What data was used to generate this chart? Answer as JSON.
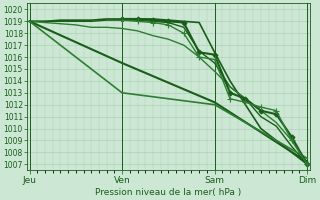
{
  "xlabel": "Pression niveau de la mer( hPa )",
  "ylim": [
    1006.5,
    1020.5
  ],
  "yticks": [
    1007,
    1008,
    1009,
    1010,
    1011,
    1012,
    1013,
    1014,
    1015,
    1016,
    1017,
    1018,
    1019,
    1020
  ],
  "xtick_labels": [
    "Jeu",
    "Ven",
    "Sam",
    "Dim"
  ],
  "xtick_positions": [
    0,
    36,
    72,
    108
  ],
  "xlim": [
    -1,
    109
  ],
  "bg_color": "#cce8d4",
  "grid_color": "#a8ccb0",
  "line_color_dark": "#1a5c1a",
  "line_color_med": "#2e7d32",
  "lines": [
    {
      "x": [
        0,
        6,
        12,
        18,
        24,
        30,
        36,
        42,
        48,
        54,
        60,
        66,
        72,
        78,
        84,
        90,
        96,
        102,
        108
      ],
      "y": [
        1019.0,
        1019.0,
        1019.1,
        1019.1,
        1019.1,
        1019.2,
        1019.2,
        1019.2,
        1019.2,
        1019.1,
        1019.0,
        1018.9,
        1016.4,
        1014.0,
        1012.0,
        1010.0,
        1009.0,
        1008.0,
        1007.0
      ],
      "color": "#1a5c1a",
      "lw": 1.2,
      "marker": null,
      "ms": 0
    },
    {
      "x": [
        0,
        6,
        12,
        18,
        24,
        30,
        36,
        42,
        48,
        54,
        60,
        66,
        72,
        78,
        84,
        90,
        96,
        102,
        108
      ],
      "y": [
        1019.0,
        1019.0,
        1019.0,
        1019.0,
        1019.0,
        1019.1,
        1019.1,
        1019.1,
        1019.0,
        1018.9,
        1018.5,
        1016.5,
        1015.5,
        1013.5,
        1012.5,
        1011.0,
        1010.2,
        1008.5,
        1007.0
      ],
      "color": "#1a5c1a",
      "lw": 1.0,
      "marker": null,
      "ms": 0
    },
    {
      "x": [
        0,
        6,
        12,
        18,
        24,
        30,
        36,
        42,
        48,
        54,
        60,
        66,
        72,
        78,
        84,
        90,
        96,
        102,
        108
      ],
      "y": [
        1019.0,
        1018.9,
        1018.8,
        1018.7,
        1018.5,
        1018.5,
        1018.4,
        1018.2,
        1017.8,
        1017.5,
        1017.0,
        1016.0,
        1014.8,
        1013.5,
        1012.5,
        1011.5,
        1010.5,
        1009.0,
        1007.2
      ],
      "color": "#2e7d32",
      "lw": 1.0,
      "marker": null,
      "ms": 0
    },
    {
      "x": [
        0,
        36,
        72,
        108
      ],
      "y": [
        1019.0,
        1015.5,
        1012.2,
        1007.2
      ],
      "color": "#1a5c1a",
      "lw": 1.5,
      "marker": null,
      "ms": 0
    },
    {
      "x": [
        0,
        36,
        72,
        108
      ],
      "y": [
        1019.0,
        1013.0,
        1012.0,
        1007.5
      ],
      "color": "#2e7d32",
      "lw": 1.2,
      "marker": null,
      "ms": 0
    },
    {
      "x": [
        36,
        42,
        48,
        54,
        60,
        66,
        72,
        78,
        84,
        90,
        96,
        102,
        108
      ],
      "y": [
        1019.2,
        1019.2,
        1019.1,
        1019.0,
        1018.9,
        1016.4,
        1016.2,
        1013.0,
        1012.5,
        1011.5,
        1011.2,
        1009.3,
        1007.0
      ],
      "color": "#1a5c1a",
      "lw": 1.5,
      "marker": "D",
      "ms": 2.5
    },
    {
      "x": [
        36,
        42,
        48,
        54,
        60,
        66,
        72,
        78,
        84,
        90,
        96,
        102,
        108
      ],
      "y": [
        1019.1,
        1019.0,
        1018.9,
        1018.7,
        1018.0,
        1016.0,
        1015.8,
        1012.5,
        1012.2,
        1011.8,
        1011.5,
        1009.0,
        1007.0
      ],
      "color": "#2e7d32",
      "lw": 1.0,
      "marker": "+",
      "ms": 4
    }
  ]
}
